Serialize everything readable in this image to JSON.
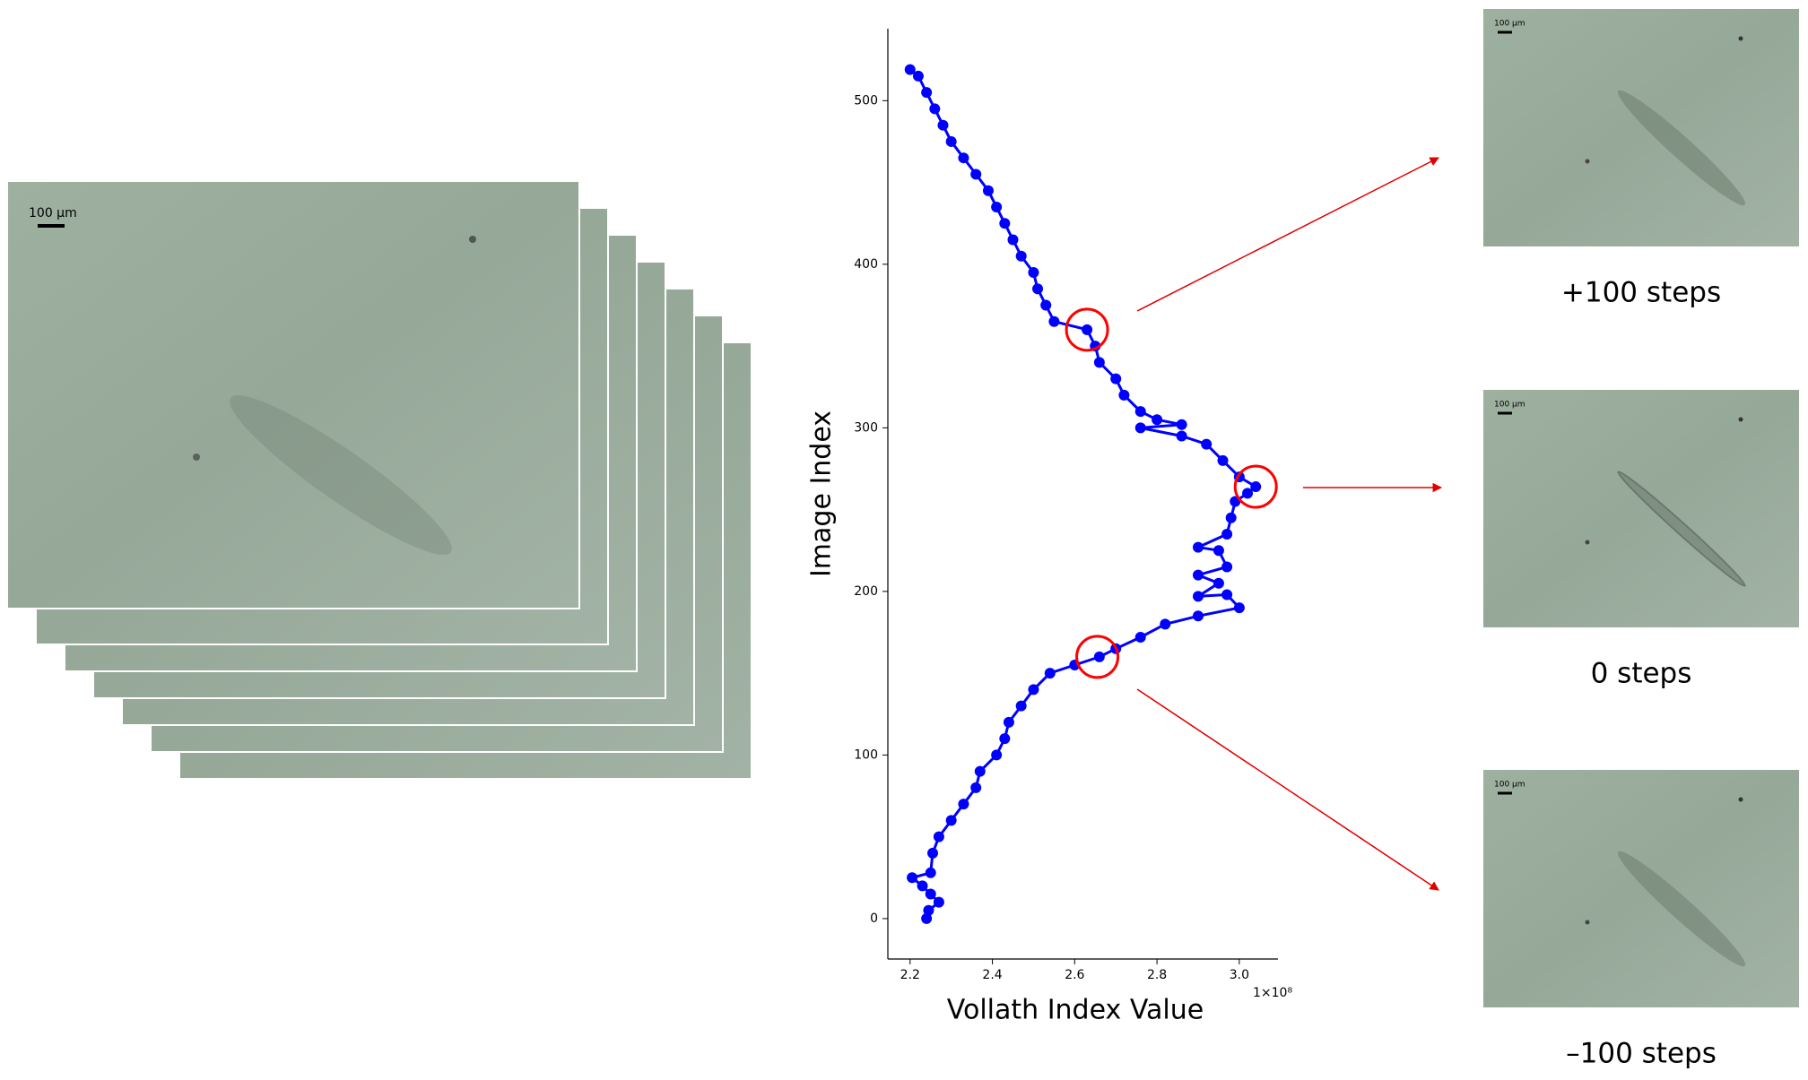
{
  "chart_data": {
    "type": "line",
    "xlabel": "Vollath Index Value",
    "ylabel": "Image Index",
    "x_offset_label": "1×10⁸",
    "x": [
      2.24,
      2.245,
      2.27,
      2.25,
      2.23,
      2.205,
      2.25,
      2.255,
      2.27,
      2.3,
      2.33,
      2.36,
      2.37,
      2.41,
      2.43,
      2.44,
      2.47,
      2.5,
      2.54,
      2.6,
      2.66,
      2.7,
      2.76,
      2.82,
      2.9,
      3.0,
      2.97,
      2.9,
      2.95,
      2.9,
      2.97,
      2.95,
      2.9,
      2.97,
      2.98,
      2.99,
      3.02,
      3.04,
      3.0,
      2.96,
      2.92,
      2.86,
      2.76,
      2.86,
      2.8,
      2.76,
      2.72,
      2.7,
      2.66,
      2.65,
      2.63,
      2.55,
      2.53,
      2.51,
      2.5,
      2.47,
      2.45,
      2.43,
      2.41,
      2.39,
      2.36,
      2.33,
      2.3,
      2.28,
      2.26,
      2.24,
      2.22,
      2.2
    ],
    "series": [
      {
        "color": "#0000ff",
        "values": [
          0,
          5,
          10,
          15,
          20,
          25,
          28,
          40,
          50,
          60,
          70,
          80,
          90,
          100,
          110,
          120,
          130,
          140,
          150,
          155,
          160,
          165,
          172,
          180,
          185,
          190,
          198,
          197,
          205,
          210,
          215,
          225,
          227,
          235,
          245,
          255,
          260,
          264,
          270,
          280,
          290,
          295,
          300,
          302,
          305,
          310,
          320,
          330,
          340,
          350,
          360,
          365,
          375,
          385,
          395,
          405,
          415,
          425,
          435,
          445,
          455,
          465,
          475,
          485,
          495,
          505,
          515,
          519
        ]
      }
    ],
    "highlights": {
      "color": "#ff0000",
      "x": [
        2.63,
        3.04,
        2.655
      ],
      "y": [
        360,
        264,
        160
      ]
    },
    "xlim": [
      2.146,
      3.094
    ],
    "ylim": [
      -24.7,
      544
    ],
    "xticks": [
      2.2,
      2.4,
      2.6,
      2.8,
      {
        "value": 3,
        "label": "3.0"
      }
    ],
    "yticks": [
      0,
      100,
      200,
      300,
      400,
      500
    ]
  },
  "images": {
    "stack_scale_bar": "100 µm",
    "panels": [
      {
        "label": "+100 steps",
        "scale_bar": "100 µm"
      },
      {
        "label": "0 steps",
        "scale_bar": "100 µm"
      },
      {
        "label": "–100 steps",
        "scale_bar": "100 µm"
      }
    ]
  }
}
